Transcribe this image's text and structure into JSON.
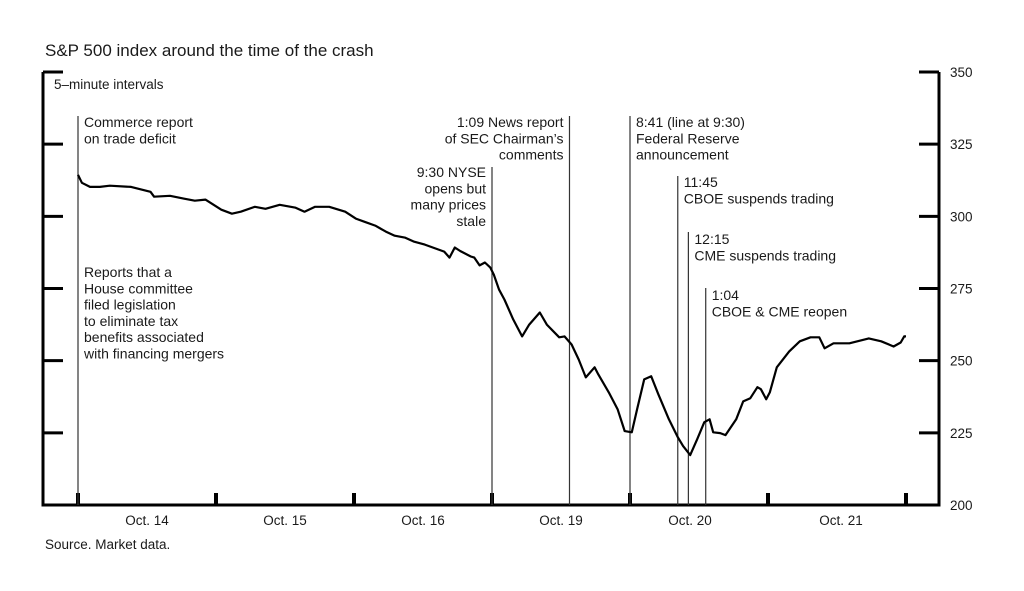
{
  "chart_data": {
    "type": "line",
    "title": "S&P 500 index around the time of the crash",
    "subtitle": "5–minute intervals",
    "source": "Source. Market data.",
    "xlabel": "",
    "ylabel": "",
    "ylim": [
      200,
      350
    ],
    "yticks": [
      200,
      225,
      250,
      275,
      300,
      325,
      350
    ],
    "y_axis_side": "right",
    "grid": false,
    "legend": "none",
    "trading_hours": [
      "9:30",
      "16:00"
    ],
    "categories": [
      "Oct. 14",
      "Oct. 15",
      "Oct. 16",
      "Oct. 19",
      "Oct. 20",
      "Oct. 21"
    ],
    "line_color": "#000000",
    "series": [
      {
        "values": [
          [
            "Oct. 14",
            "9:30",
            314.4
          ],
          [
            "Oct. 14",
            "9:41",
            311.6
          ],
          [
            "Oct. 14",
            "10:04",
            310.2
          ],
          [
            "Oct. 14",
            "10:32",
            310.2
          ],
          [
            "Oct. 14",
            "11:00",
            310.6
          ],
          [
            "Oct. 14",
            "12:00",
            310.2
          ],
          [
            "Oct. 14",
            "12:55",
            308.5
          ],
          [
            "Oct. 14",
            "13:05",
            306.8
          ],
          [
            "Oct. 14",
            "13:50",
            307.1
          ],
          [
            "Oct. 14",
            "14:30",
            306.1
          ],
          [
            "Oct. 14",
            "15:00",
            305.4
          ],
          [
            "Oct. 14",
            "15:30",
            305.8
          ],
          [
            "Oct. 15",
            "9:45",
            302.3
          ],
          [
            "Oct. 15",
            "10:15",
            300.9
          ],
          [
            "Oct. 15",
            "10:40",
            301.6
          ],
          [
            "Oct. 15",
            "11:20",
            303.3
          ],
          [
            "Oct. 15",
            "11:50",
            302.6
          ],
          [
            "Oct. 15",
            "12:30",
            304.0
          ],
          [
            "Oct. 15",
            "13:15",
            303.0
          ],
          [
            "Oct. 15",
            "13:40",
            301.6
          ],
          [
            "Oct. 15",
            "14:10",
            303.3
          ],
          [
            "Oct. 15",
            "14:50",
            303.3
          ],
          [
            "Oct. 15",
            "15:35",
            301.6
          ],
          [
            "Oct. 16",
            "9:35",
            299.2
          ],
          [
            "Oct. 16",
            "10:00",
            298.1
          ],
          [
            "Oct. 16",
            "10:30",
            296.8
          ],
          [
            "Oct. 16",
            "11:00",
            294.7
          ],
          [
            "Oct. 16",
            "11:25",
            293.3
          ],
          [
            "Oct. 16",
            "11:55",
            292.6
          ],
          [
            "Oct. 16",
            "12:20",
            291.2
          ],
          [
            "Oct. 16",
            "12:50",
            290.2
          ],
          [
            "Oct. 16",
            "13:45",
            287.8
          ],
          [
            "Oct. 16",
            "14:00",
            285.7
          ],
          [
            "Oct. 16",
            "14:15",
            289.2
          ],
          [
            "Oct. 16",
            "14:30",
            288.0
          ],
          [
            "Oct. 16",
            "15:00",
            286.1
          ],
          [
            "Oct. 16",
            "15:10",
            285.7
          ],
          [
            "Oct. 16",
            "15:25",
            283.0
          ],
          [
            "Oct. 16",
            "15:40",
            284.0
          ],
          [
            "Oct. 16",
            "15:55",
            282.3
          ],
          [
            "Oct. 19",
            "9:35",
            279.8
          ],
          [
            "Oct. 19",
            "9:50",
            274.6
          ],
          [
            "Oct. 19",
            "10:05",
            271.2
          ],
          [
            "Oct. 19",
            "10:30",
            264.3
          ],
          [
            "Oct. 19",
            "10:55",
            258.4
          ],
          [
            "Oct. 19",
            "11:15",
            262.5
          ],
          [
            "Oct. 19",
            "11:45",
            266.7
          ],
          [
            "Oct. 19",
            "12:05",
            262.5
          ],
          [
            "Oct. 19",
            "12:40",
            258.1
          ],
          [
            "Oct. 19",
            "12:55",
            258.4
          ],
          [
            "Oct. 19",
            "13:15",
            255.6
          ],
          [
            "Oct. 19",
            "13:35",
            250.4
          ],
          [
            "Oct. 19",
            "13:55",
            244.2
          ],
          [
            "Oct. 19",
            "14:20",
            247.7
          ],
          [
            "Oct. 19",
            "14:30",
            245.3
          ],
          [
            "Oct. 19",
            "15:00",
            239.0
          ],
          [
            "Oct. 19",
            "15:25",
            233.2
          ],
          [
            "Oct. 19",
            "15:45",
            225.6
          ],
          [
            "Oct. 20",
            "9:35",
            225.2
          ],
          [
            "Oct. 20",
            "9:50",
            233.2
          ],
          [
            "Oct. 20",
            "10:10",
            243.5
          ],
          [
            "Oct. 20",
            "10:30",
            244.6
          ],
          [
            "Oct. 20",
            "10:50",
            238.4
          ],
          [
            "Oct. 20",
            "11:20",
            229.7
          ],
          [
            "Oct. 20",
            "11:45",
            223.5
          ],
          [
            "Oct. 20",
            "12:00",
            220.4
          ],
          [
            "Oct. 20",
            "12:20",
            217.3
          ],
          [
            "Oct. 20",
            "12:40",
            222.8
          ],
          [
            "Oct. 20",
            "13:00",
            228.7
          ],
          [
            "Oct. 20",
            "13:15",
            229.7
          ],
          [
            "Oct. 20",
            "13:25",
            225.2
          ],
          [
            "Oct. 20",
            "13:45",
            224.9
          ],
          [
            "Oct. 20",
            "14:00",
            224.2
          ],
          [
            "Oct. 20",
            "14:30",
            229.7
          ],
          [
            "Oct. 20",
            "14:50",
            235.9
          ],
          [
            "Oct. 20",
            "15:10",
            237.0
          ],
          [
            "Oct. 20",
            "15:30",
            240.8
          ],
          [
            "Oct. 20",
            "15:40",
            240.1
          ],
          [
            "Oct. 20",
            "15:55",
            236.6
          ],
          [
            "Oct. 21",
            "9:35",
            239.0
          ],
          [
            "Oct. 21",
            "9:55",
            247.7
          ],
          [
            "Oct. 21",
            "10:30",
            253.2
          ],
          [
            "Oct. 21",
            "11:00",
            256.7
          ],
          [
            "Oct. 21",
            "11:30",
            258.1
          ],
          [
            "Oct. 21",
            "11:55",
            258.1
          ],
          [
            "Oct. 21",
            "12:10",
            254.3
          ],
          [
            "Oct. 21",
            "12:35",
            256.0
          ],
          [
            "Oct. 21",
            "13:20",
            256.0
          ],
          [
            "Oct. 21",
            "14:15",
            257.7
          ],
          [
            "Oct. 21",
            "14:50",
            256.7
          ],
          [
            "Oct. 21",
            "15:25",
            254.9
          ],
          [
            "Oct. 21",
            "15:45",
            256.3
          ],
          [
            "Oct. 21",
            "15:55",
            258.4
          ],
          [
            "Oct. 21",
            "16:00",
            258.4
          ]
        ]
      }
    ],
    "annotations": [
      {
        "day": "Oct. 14",
        "time": "9:30",
        "lines": [
          "Commerce report",
          "on trade deficit"
        ],
        "align": "left"
      },
      {
        "day": "Oct. 14",
        "time": "9:30",
        "lines": [
          "Reports that a",
          "House committee",
          "filed legislation",
          "to eliminate tax",
          "benefits associated",
          "with financing mergers"
        ],
        "align": "left"
      },
      {
        "day": "Oct. 19",
        "time": "9:30",
        "lines": [
          "9:30 NYSE",
          "opens but",
          "many prices",
          "stale"
        ],
        "align": "right"
      },
      {
        "day": "Oct. 19",
        "time": "13:09",
        "lines": [
          "1:09 News report",
          "of SEC Chairman’s",
          "comments"
        ],
        "align": "right"
      },
      {
        "day": "Oct. 20",
        "time": "9:30",
        "lines": [
          "8:41 (line at 9:30)",
          "Federal Reserve",
          "announcement"
        ],
        "align": "left"
      },
      {
        "day": "Oct. 20",
        "time": "11:45",
        "lines": [
          "11:45",
          "CBOE suspends trading"
        ],
        "align": "left"
      },
      {
        "day": "Oct. 20",
        "time": "12:15",
        "lines": [
          "12:15",
          "CME suspends trading"
        ],
        "align": "left"
      },
      {
        "day": "Oct. 20",
        "time": "13:04",
        "lines": [
          "1:04",
          "CBOE & CME reopen"
        ],
        "align": "left"
      }
    ]
  }
}
